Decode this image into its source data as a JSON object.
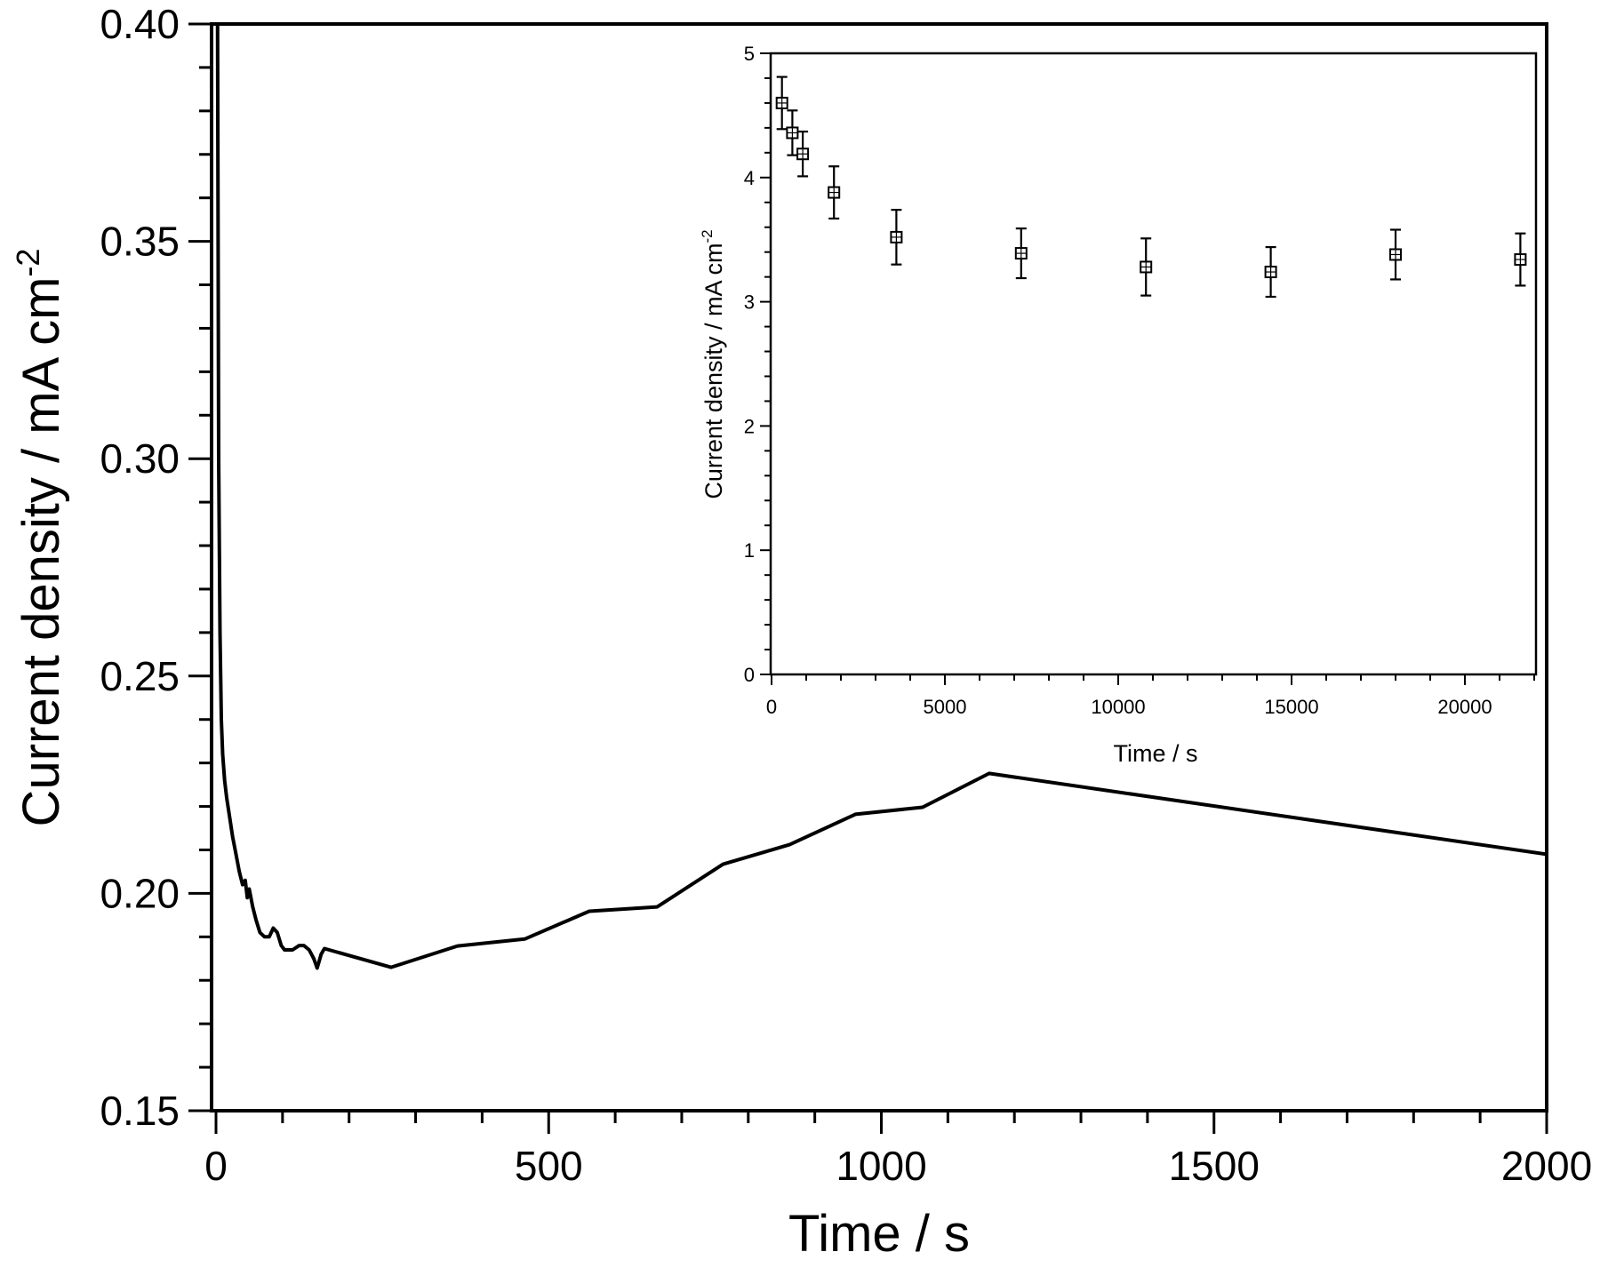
{
  "chart_data": [
    {
      "id": "main",
      "type": "line",
      "title": "",
      "xlabel": "Time / s",
      "ylabel": "Current density / mA cm",
      "ylabel_superscript": "-2",
      "xlim": [
        0,
        2000
      ],
      "ylim": [
        0.15,
        0.4
      ],
      "x_ticks": [
        0,
        500,
        1000,
        1500,
        2000
      ],
      "x_tick_labels": [
        "0",
        "500",
        "1000",
        "1500",
        "2000"
      ],
      "x_minor_step": 100,
      "y_ticks": [
        0.15,
        0.2,
        0.25,
        0.3,
        0.35,
        0.4
      ],
      "y_tick_labels": [
        "0.15",
        "0.20",
        "0.25",
        "0.30",
        "0.35",
        "0.40"
      ],
      "y_minor_step": 0.01,
      "grid": false,
      "legend": null,
      "series": [
        {
          "name": "Current density",
          "color": "#000000",
          "x": [
            2,
            4,
            6,
            8,
            10,
            13,
            16,
            20,
            25,
            30,
            35,
            40,
            44,
            47,
            50,
            55,
            60,
            66,
            73,
            80,
            86,
            92,
            98,
            103,
            115,
            125,
            132,
            140,
            147,
            152,
            158,
            163,
            263,
            363,
            464,
            561,
            663,
            762,
            862,
            961,
            1062,
            1162,
            2000
          ],
          "y": [
            0.42,
            0.3,
            0.26,
            0.24,
            0.232,
            0.226,
            0.222,
            0.218,
            0.213,
            0.209,
            0.205,
            0.202,
            0.203,
            0.199,
            0.201,
            0.197,
            0.194,
            0.191,
            0.19,
            0.19,
            0.192,
            0.191,
            0.188,
            0.187,
            0.187,
            0.188,
            0.188,
            0.187,
            0.185,
            0.1828,
            0.186,
            0.1873,
            0.183,
            0.1879,
            0.1895,
            0.1959,
            0.1969,
            0.2067,
            0.2112,
            0.2182,
            0.2198,
            0.2276,
            0.209
          ]
        }
      ]
    },
    {
      "id": "inset",
      "type": "scatter",
      "title": "",
      "xlabel": "Time / s",
      "ylabel": "Current density / mA cm",
      "ylabel_superscript": "-2",
      "xlim": [
        0,
        22000
      ],
      "ylim": [
        0,
        5
      ],
      "x_ticks": [
        0,
        5000,
        10000,
        15000,
        20000
      ],
      "x_tick_labels": [
        "0",
        "5000",
        "10000",
        "15000",
        "20000"
      ],
      "x_minor_step": 1000,
      "y_ticks": [
        0,
        1,
        2,
        3,
        4,
        5
      ],
      "y_tick_labels": [
        "0",
        "1",
        "2",
        "3",
        "4",
        "5"
      ],
      "y_minor_step": 0.2,
      "grid": false,
      "legend": null,
      "marker": "square-with-cross",
      "series": [
        {
          "name": "Current density (mean ± error)",
          "color": "#000000",
          "x": [
            300,
            600,
            900,
            1800,
            3600,
            7200,
            10800,
            14400,
            18000,
            21600
          ],
          "y": [
            4.6,
            4.36,
            4.19,
            3.88,
            3.52,
            3.39,
            3.28,
            3.24,
            3.38,
            3.34
          ],
          "error": [
            0.21,
            0.18,
            0.18,
            0.21,
            0.22,
            0.2,
            0.23,
            0.2,
            0.2,
            0.21
          ]
        }
      ]
    }
  ],
  "figure": {
    "main_xlabel": "Time / s",
    "main_ylabel": "Current density / mA cm",
    "main_ylabel_sup": "-2",
    "inset_xlabel": "Time / s",
    "inset_ylabel": "Current density / mA cm",
    "inset_ylabel_sup": "-2"
  }
}
